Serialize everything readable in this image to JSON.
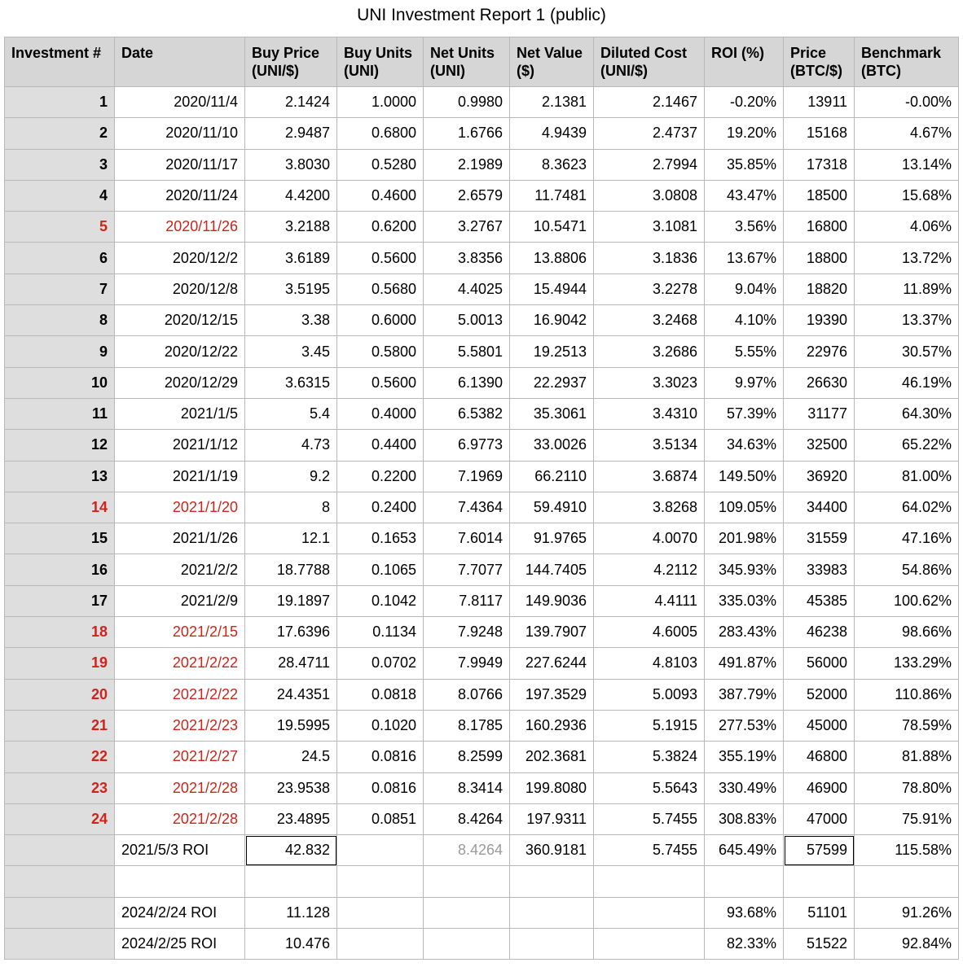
{
  "title": "UNI Investment Report 1 (public)",
  "headers": {
    "h0": "Investment #",
    "h1": "Date",
    "h2a": "Buy Price",
    "h2b": "(UNI/$)",
    "h3a": "Buy Units",
    "h3b": "(UNI)",
    "h4a": "Net Units",
    "h4b": "(UNI)",
    "h5a": "Net Value",
    "h5b": "($)",
    "h6a": "Diluted Cost",
    "h6b": "(UNI/$)",
    "h7": "ROI (%)",
    "h8a": "Price",
    "h8b": "(BTC/$)",
    "h9a": "Benchmark",
    "h9b": "(BTC)"
  },
  "rows": [
    {
      "n": "1",
      "date": "2020/11/4",
      "buy_price": "2.1424",
      "buy_units": "1.0000",
      "net_units": "0.9980",
      "net_value": "2.1381",
      "diluted_cost": "2.1467",
      "roi": "-0.20%",
      "btc_price": "13911",
      "benchmark": "-0.00%",
      "highlight": false
    },
    {
      "n": "2",
      "date": "2020/11/10",
      "buy_price": "2.9487",
      "buy_units": "0.6800",
      "net_units": "1.6766",
      "net_value": "4.9439",
      "diluted_cost": "2.4737",
      "roi": "19.20%",
      "btc_price": "15168",
      "benchmark": "4.67%",
      "highlight": false
    },
    {
      "n": "3",
      "date": "2020/11/17",
      "buy_price": "3.8030",
      "buy_units": "0.5280",
      "net_units": "2.1989",
      "net_value": "8.3623",
      "diluted_cost": "2.7994",
      "roi": "35.85%",
      "btc_price": "17318",
      "benchmark": "13.14%",
      "highlight": false
    },
    {
      "n": "4",
      "date": "2020/11/24",
      "buy_price": "4.4200",
      "buy_units": "0.4600",
      "net_units": "2.6579",
      "net_value": "11.7481",
      "diluted_cost": "3.0808",
      "roi": "43.47%",
      "btc_price": "18500",
      "benchmark": "15.68%",
      "highlight": false
    },
    {
      "n": "5",
      "date": "2020/11/26",
      "buy_price": "3.2188",
      "buy_units": "0.6200",
      "net_units": "3.2767",
      "net_value": "10.5471",
      "diluted_cost": "3.1081",
      "roi": "3.56%",
      "btc_price": "16800",
      "benchmark": "4.06%",
      "highlight": true
    },
    {
      "n": "6",
      "date": "2020/12/2",
      "buy_price": "3.6189",
      "buy_units": "0.5600",
      "net_units": "3.8356",
      "net_value": "13.8806",
      "diluted_cost": "3.1836",
      "roi": "13.67%",
      "btc_price": "18800",
      "benchmark": "13.72%",
      "highlight": false
    },
    {
      "n": "7",
      "date": "2020/12/8",
      "buy_price": "3.5195",
      "buy_units": "0.5680",
      "net_units": "4.4025",
      "net_value": "15.4944",
      "diluted_cost": "3.2278",
      "roi": "9.04%",
      "btc_price": "18820",
      "benchmark": "11.89%",
      "highlight": false
    },
    {
      "n": "8",
      "date": "2020/12/15",
      "buy_price": "3.38",
      "buy_units": "0.6000",
      "net_units": "5.0013",
      "net_value": "16.9042",
      "diluted_cost": "3.2468",
      "roi": "4.10%",
      "btc_price": "19390",
      "benchmark": "13.37%",
      "highlight": false
    },
    {
      "n": "9",
      "date": "2020/12/22",
      "buy_price": "3.45",
      "buy_units": "0.5800",
      "net_units": "5.5801",
      "net_value": "19.2513",
      "diluted_cost": "3.2686",
      "roi": "5.55%",
      "btc_price": "22976",
      "benchmark": "30.57%",
      "highlight": false
    },
    {
      "n": "10",
      "date": "2020/12/29",
      "buy_price": "3.6315",
      "buy_units": "0.5600",
      "net_units": "6.1390",
      "net_value": "22.2937",
      "diluted_cost": "3.3023",
      "roi": "9.97%",
      "btc_price": "26630",
      "benchmark": "46.19%",
      "highlight": false
    },
    {
      "n": "11",
      "date": "2021/1/5",
      "buy_price": "5.4",
      "buy_units": "0.4000",
      "net_units": "6.5382",
      "net_value": "35.3061",
      "diluted_cost": "3.4310",
      "roi": "57.39%",
      "btc_price": "31177",
      "benchmark": "64.30%",
      "highlight": false
    },
    {
      "n": "12",
      "date": "2021/1/12",
      "buy_price": "4.73",
      "buy_units": "0.4400",
      "net_units": "6.9773",
      "net_value": "33.0026",
      "diluted_cost": "3.5134",
      "roi": "34.63%",
      "btc_price": "32500",
      "benchmark": "65.22%",
      "highlight": false
    },
    {
      "n": "13",
      "date": "2021/1/19",
      "buy_price": "9.2",
      "buy_units": "0.2200",
      "net_units": "7.1969",
      "net_value": "66.2110",
      "diluted_cost": "3.6874",
      "roi": "149.50%",
      "btc_price": "36920",
      "benchmark": "81.00%",
      "highlight": false
    },
    {
      "n": "14",
      "date": "2021/1/20",
      "buy_price": "8",
      "buy_units": "0.2400",
      "net_units": "7.4364",
      "net_value": "59.4910",
      "diluted_cost": "3.8268",
      "roi": "109.05%",
      "btc_price": "34400",
      "benchmark": "64.02%",
      "highlight": true
    },
    {
      "n": "15",
      "date": "2021/1/26",
      "buy_price": "12.1",
      "buy_units": "0.1653",
      "net_units": "7.6014",
      "net_value": "91.9765",
      "diluted_cost": "4.0070",
      "roi": "201.98%",
      "btc_price": "31559",
      "benchmark": "47.16%",
      "highlight": false
    },
    {
      "n": "16",
      "date": "2021/2/2",
      "buy_price": "18.7788",
      "buy_units": "0.1065",
      "net_units": "7.7077",
      "net_value": "144.7405",
      "diluted_cost": "4.2112",
      "roi": "345.93%",
      "btc_price": "33983",
      "benchmark": "54.86%",
      "highlight": false
    },
    {
      "n": "17",
      "date": "2021/2/9",
      "buy_price": "19.1897",
      "buy_units": "0.1042",
      "net_units": "7.8117",
      "net_value": "149.9036",
      "diluted_cost": "4.4111",
      "roi": "335.03%",
      "btc_price": "45385",
      "benchmark": "100.62%",
      "highlight": false
    },
    {
      "n": "18",
      "date": "2021/2/15",
      "buy_price": "17.6396",
      "buy_units": "0.1134",
      "net_units": "7.9248",
      "net_value": "139.7907",
      "diluted_cost": "4.6005",
      "roi": "283.43%",
      "btc_price": "46238",
      "benchmark": "98.66%",
      "highlight": true
    },
    {
      "n": "19",
      "date": "2021/2/22",
      "buy_price": "28.4711",
      "buy_units": "0.0702",
      "net_units": "7.9949",
      "net_value": "227.6244",
      "diluted_cost": "4.8103",
      "roi": "491.87%",
      "btc_price": "56000",
      "benchmark": "133.29%",
      "highlight": true
    },
    {
      "n": "20",
      "date": "2021/2/22",
      "buy_price": "24.4351",
      "buy_units": "0.0818",
      "net_units": "8.0766",
      "net_value": "197.3529",
      "diluted_cost": "5.0093",
      "roi": "387.79%",
      "btc_price": "52000",
      "benchmark": "110.86%",
      "highlight": true
    },
    {
      "n": "21",
      "date": "2021/2/23",
      "buy_price": "19.5995",
      "buy_units": "0.1020",
      "net_units": "8.1785",
      "net_value": "160.2936",
      "diluted_cost": "5.1915",
      "roi": "277.53%",
      "btc_price": "45000",
      "benchmark": "78.59%",
      "highlight": true
    },
    {
      "n": "22",
      "date": "2021/2/27",
      "buy_price": "24.5",
      "buy_units": "0.0816",
      "net_units": "8.2599",
      "net_value": "202.3681",
      "diluted_cost": "5.3824",
      "roi": "355.19%",
      "btc_price": "46800",
      "benchmark": "81.88%",
      "highlight": true
    },
    {
      "n": "23",
      "date": "2021/2/28",
      "buy_price": "23.9538",
      "buy_units": "0.0816",
      "net_units": "8.3414",
      "net_value": "199.8080",
      "diluted_cost": "5.5643",
      "roi": "330.49%",
      "btc_price": "46900",
      "benchmark": "78.80%",
      "highlight": true
    },
    {
      "n": "24",
      "date": "2021/2/28",
      "buy_price": "23.4895",
      "buy_units": "0.0851",
      "net_units": "8.4264",
      "net_value": "197.9311",
      "diluted_cost": "5.7455",
      "roi": "308.83%",
      "btc_price": "47000",
      "benchmark": "75.91%",
      "highlight": true
    }
  ],
  "summary": {
    "label": "2021/5/3 ROI",
    "buy_price": "42.832",
    "net_units": "8.4264",
    "net_value": "360.9181",
    "diluted_cost": "5.7455",
    "roi": "645.49%",
    "btc_price": "57599",
    "benchmark": "115.58%"
  },
  "later": [
    {
      "label": "2024/2/24 ROI",
      "buy_price": "11.128",
      "roi": "93.68%",
      "btc_price": "51101",
      "benchmark": "91.26%"
    },
    {
      "label": "2024/2/25 ROI",
      "buy_price": "10.476",
      "roi": "82.33%",
      "btc_price": "51522",
      "benchmark": "92.84%"
    }
  ],
  "colors": {
    "highlight": "#d0231b",
    "header_bg": "#d6d6d6",
    "index_bg": "#dedede"
  }
}
